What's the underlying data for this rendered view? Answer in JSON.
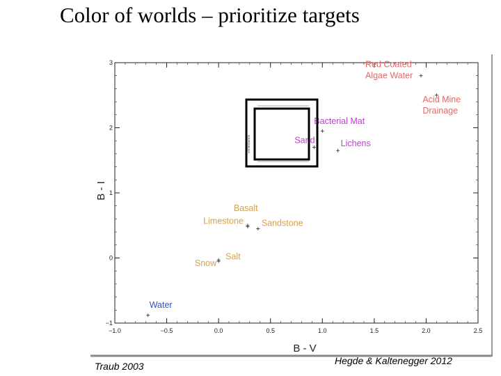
{
  "slide": {
    "title": "Color of worlds – prioritize targets",
    "citation_left": "Traub 2003",
    "citation_right": "Hegde & Kaltenegger 2012"
  },
  "chart_data": {
    "type": "scatter",
    "title": "",
    "xlabel": "B - V",
    "ylabel": "B - I",
    "xlim": [
      -1.0,
      2.5
    ],
    "ylim": [
      -1.0,
      3.0
    ],
    "xticks": [
      "-1.0",
      "-0.5",
      "0.0",
      "0.5",
      "1.0",
      "1.5",
      "2.0",
      "2.5"
    ],
    "yticks": [
      "-1",
      "0",
      "1",
      "2",
      "3"
    ],
    "grid": false,
    "colors": {
      "red": "#e06a6a",
      "magenta": "#c43bd6",
      "orange": "#d9a04c",
      "blue": "#2f4fd1",
      "frame": "#000000"
    },
    "points": [
      {
        "label": "Red Coated Algae Water",
        "lines": [
          "Red Coated",
          "Algae Water"
        ],
        "x": 1.95,
        "y": 2.8,
        "color": "red"
      },
      {
        "label": "Acid Mine Drainage",
        "lines": [
          "Acid Mine",
          "Drainage"
        ],
        "x": 2.1,
        "y": 2.5,
        "color": "red"
      },
      {
        "label": "Bacterial Mat",
        "lines": [
          "Bacterial Mat"
        ],
        "x": 1.0,
        "y": 1.95,
        "color": "magenta"
      },
      {
        "label": "Sand",
        "lines": [
          "Sand"
        ],
        "x": 0.92,
        "y": 1.7,
        "color": "magenta"
      },
      {
        "label": "Lichens",
        "lines": [
          "Lichens"
        ],
        "x": 1.15,
        "y": 1.65,
        "color": "magenta"
      },
      {
        "label": "Basalt",
        "lines": [
          "Basalt"
        ],
        "x": 0.28,
        "y": 0.5,
        "color": "orange"
      },
      {
        "label": "Limestone",
        "lines": [
          "Limestone"
        ],
        "x": 0.28,
        "y": 0.48,
        "color": "orange"
      },
      {
        "label": "Sandstone",
        "lines": [
          "Sandstone"
        ],
        "x": 0.38,
        "y": 0.45,
        "color": "orange"
      },
      {
        "label": "Salt",
        "lines": [
          "Salt"
        ],
        "x": 0.0,
        "y": -0.03,
        "color": "orange"
      },
      {
        "label": "Snow",
        "lines": [
          "Snow"
        ],
        "x": 0.0,
        "y": -0.05,
        "color": "orange"
      },
      {
        "label": "Water",
        "lines": [
          "Water"
        ],
        "x": -0.68,
        "y": -0.88,
        "color": "blue"
      }
    ],
    "inset_label": "Reflectance"
  }
}
